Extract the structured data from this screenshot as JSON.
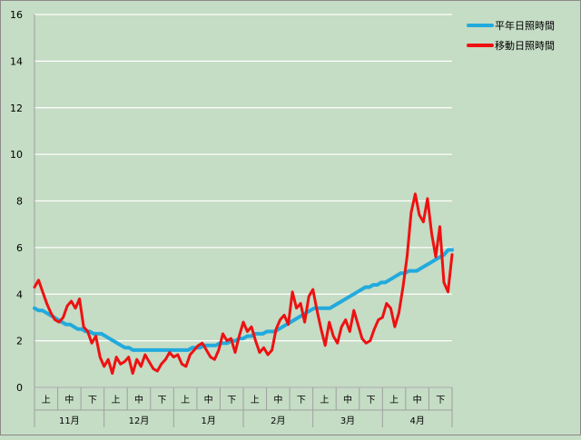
{
  "chart_data": {
    "type": "line",
    "ylim": [
      0,
      16
    ],
    "yticks": [
      0,
      2,
      4,
      6,
      8,
      10,
      12,
      14,
      16
    ],
    "grid": true,
    "legend_position": "top-right",
    "x_sub_labels": [
      "上",
      "中",
      "下",
      "上",
      "中",
      "下",
      "上",
      "中",
      "下",
      "上",
      "中",
      "下",
      "上",
      "中",
      "下",
      "上",
      "中",
      "下"
    ],
    "x_month_labels": [
      "11月",
      "12月",
      "1月",
      "2月",
      "3月",
      "4月"
    ],
    "series": [
      {
        "name": "平年日照時間",
        "color": "#22aadd",
        "values": [
          3.4,
          3.3,
          3.3,
          3.2,
          3.1,
          3.0,
          2.9,
          2.8,
          2.7,
          2.7,
          2.6,
          2.5,
          2.5,
          2.4,
          2.4,
          2.3,
          2.3,
          2.3,
          2.2,
          2.1,
          2.0,
          1.9,
          1.8,
          1.7,
          1.7,
          1.6,
          1.6,
          1.6,
          1.6,
          1.6,
          1.6,
          1.6,
          1.6,
          1.6,
          1.6,
          1.6,
          1.6,
          1.6,
          1.6,
          1.6,
          1.7,
          1.7,
          1.7,
          1.8,
          1.8,
          1.8,
          1.8,
          1.9,
          1.9,
          1.9,
          2.0,
          2.0,
          2.1,
          2.1,
          2.2,
          2.2,
          2.3,
          2.3,
          2.3,
          2.4,
          2.4,
          2.4,
          2.5,
          2.6,
          2.7,
          2.8,
          2.9,
          3.0,
          3.1,
          3.2,
          3.3,
          3.4,
          3.4,
          3.4,
          3.4,
          3.4,
          3.5,
          3.6,
          3.7,
          3.8,
          3.9,
          4.0,
          4.1,
          4.2,
          4.3,
          4.3,
          4.4,
          4.4,
          4.5,
          4.5,
          4.6,
          4.7,
          4.8,
          4.9,
          4.9,
          5.0,
          5.0,
          5.0,
          5.1,
          5.2,
          5.3,
          5.4,
          5.5,
          5.6,
          5.7,
          5.9,
          5.9
        ]
      },
      {
        "name": "移動日照時間",
        "color": "#ee1111",
        "values": [
          4.3,
          4.6,
          4.1,
          3.6,
          3.2,
          2.9,
          2.8,
          3.0,
          3.5,
          3.7,
          3.4,
          3.8,
          2.6,
          2.4,
          1.9,
          2.2,
          1.3,
          0.9,
          1.2,
          0.6,
          1.3,
          1.0,
          1.1,
          1.3,
          0.6,
          1.2,
          0.9,
          1.4,
          1.1,
          0.8,
          0.7,
          1.0,
          1.2,
          1.5,
          1.3,
          1.4,
          1.0,
          0.9,
          1.4,
          1.6,
          1.8,
          1.9,
          1.6,
          1.3,
          1.2,
          1.6,
          2.3,
          2.0,
          2.1,
          1.5,
          2.2,
          2.8,
          2.4,
          2.6,
          2.0,
          1.5,
          1.7,
          1.4,
          1.6,
          2.5,
          2.9,
          3.1,
          2.7,
          4.1,
          3.4,
          3.6,
          2.8,
          3.9,
          4.2,
          3.3,
          2.5,
          1.8,
          2.8,
          2.2,
          1.9,
          2.6,
          2.9,
          2.4,
          3.3,
          2.7,
          2.1,
          1.9,
          2.0,
          2.5,
          2.9,
          3.0,
          3.6,
          3.4,
          2.6,
          3.2,
          4.3,
          5.6,
          7.5,
          8.3,
          7.4,
          7.1,
          8.1,
          6.6,
          5.6,
          6.9,
          4.5,
          4.1,
          5.7
        ]
      }
    ]
  }
}
